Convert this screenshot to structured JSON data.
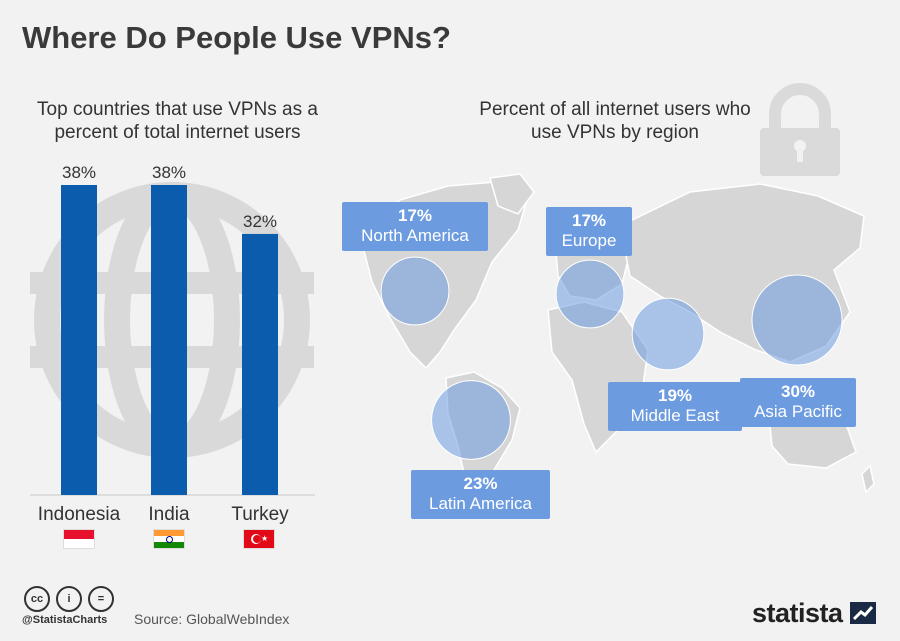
{
  "title": "Where Do People Use VPNs?",
  "bar_subtitle": "Top countries that use VPNs as a percent of total internet users",
  "map_subtitle": "Percent of all internet users who use VPNs by region",
  "colors": {
    "bar": "#0b5cad",
    "bubble": "#6c9be0",
    "label_bg": "#6c9be0",
    "map": "#d6d6d6",
    "background": "#f2f2f2"
  },
  "icons": [
    "padlock-icon",
    "globe-icon",
    "cc-icon",
    "by-icon",
    "nd-icon",
    "statista-icon"
  ],
  "chart_data": [
    {
      "type": "bar",
      "title": "Top countries that use VPNs as a percent of total internet users",
      "categories": [
        "Indonesia",
        "India",
        "Turkey"
      ],
      "values": [
        38,
        38,
        32
      ],
      "value_labels": [
        "38%",
        "38%",
        "32%"
      ],
      "ylim": [
        0,
        38
      ],
      "grid": false
    },
    {
      "type": "scatter",
      "title": "Percent of all internet users who use VPNs by region",
      "regions": [
        {
          "name": "North America",
          "value": 17,
          "label": "17%"
        },
        {
          "name": "Europe",
          "value": 17,
          "label": "17%"
        },
        {
          "name": "Middle East",
          "value": 19,
          "label": "19%"
        },
        {
          "name": "Asia Pacific",
          "value": 30,
          "label": "30%"
        },
        {
          "name": "Latin America",
          "value": 23,
          "label": "23%"
        }
      ]
    }
  ],
  "footer": {
    "handle": "@StatistaCharts",
    "source": "Source: GlobalWebIndex",
    "brand": "statista",
    "cc_labels": [
      "cc",
      "i",
      "="
    ]
  }
}
